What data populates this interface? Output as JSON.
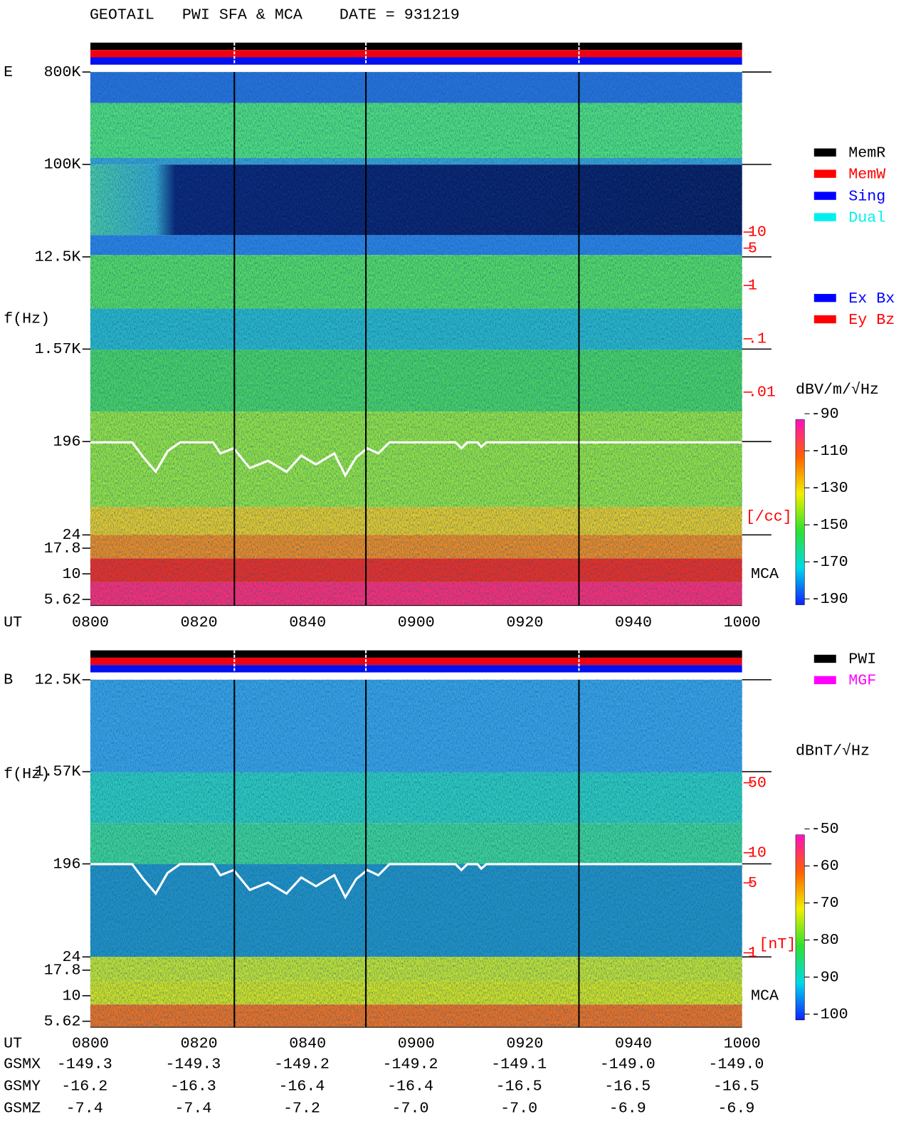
{
  "title": "GEOTAIL   PWI SFA & MCA    DATE = 931219",
  "chart_data": [
    {
      "type": "spectrogram",
      "panel_label": "E",
      "y_label": "f(Hz)",
      "x_label": "UT",
      "yscale": "log",
      "ylim": [
        4.9,
        800000
      ],
      "yticks": [
        {
          "value": 800000,
          "label": "800K"
        },
        {
          "value": 100000,
          "label": "100K"
        },
        {
          "value": 12500,
          "label": "12.5K"
        },
        {
          "value": 1570,
          "label": "1.57K"
        },
        196,
        24,
        17.8,
        10,
        5.62
      ],
      "x_categories": [
        "0800",
        "0820",
        "0840",
        "0900",
        "0920",
        "0940",
        "1000"
      ],
      "mca_label": "MCA",
      "colorbar_label": "dBV/m/√Hz",
      "clim": [
        -190,
        -90
      ],
      "colorbar_ticks": [
        -90,
        -110,
        -130,
        -150,
        -170,
        -190
      ],
      "density_label": "[/cc]",
      "y3lim": [
        1e-06,
        10000
      ],
      "density_ticks": [
        10,
        5,
        1,
        {
          "value": 0.1,
          "label": ".1"
        },
        {
          "value": 0.01,
          "label": ".01"
        }
      ],
      "legend": [
        {
          "name": "MemR",
          "color": "#000000"
        },
        {
          "name": "MemW",
          "color": "#ff0000"
        },
        {
          "name": "Sing",
          "color": "#0000ff"
        },
        {
          "name": "Dual",
          "color": "#00f0f0"
        }
      ],
      "component_legend": [
        {
          "name": "Ex Bx",
          "color": "#0000ff"
        },
        {
          "name": "Ey Bz",
          "color": "#ff0000"
        }
      ]
    },
    {
      "type": "spectrogram",
      "panel_label": "B",
      "y_label": "f(Hz)",
      "x_label": "UT",
      "yscale": "log",
      "ylim": [
        4.9,
        12500
      ],
      "yticks": [
        {
          "value": 12500,
          "label": "12.5K"
        },
        {
          "value": 1570,
          "label": "1.57K"
        },
        196,
        24,
        17.8,
        10,
        5.62
      ],
      "x_categories": [
        "0800",
        "0820",
        "0840",
        "0900",
        "0920",
        "0940",
        "1000"
      ],
      "mca_label": "MCA",
      "colorbar_label": "dBnT/√Hz",
      "clim": [
        -100,
        -50
      ],
      "colorbar_ticks": [
        -50,
        -60,
        -70,
        -80,
        -90,
        -100
      ],
      "density_label": "[nT]",
      "y3lim": [
        0.18,
        535
      ],
      "density_ticks": [
        50,
        10,
        5,
        1
      ],
      "legend": [
        {
          "name": "PWI",
          "color": "#000000"
        },
        {
          "name": "MGF",
          "color": "#ff00ff"
        }
      ]
    }
  ],
  "orbit": {
    "rows": [
      {
        "name": "GSMX",
        "values": [
          "-149.3",
          "-149.3",
          "-149.2",
          "-149.2",
          "-149.1",
          "-149.0",
          "-149.0"
        ]
      },
      {
        "name": "GSMY",
        "values": [
          "-16.2",
          "-16.3",
          "-16.4",
          "-16.4",
          "-16.5",
          "-16.5",
          "-16.5"
        ]
      },
      {
        "name": "GSMZ",
        "values": [
          "-7.4",
          "-7.4",
          "-7.2",
          "-7.0",
          "-7.0",
          "-6.9",
          "-6.9"
        ]
      }
    ]
  }
}
